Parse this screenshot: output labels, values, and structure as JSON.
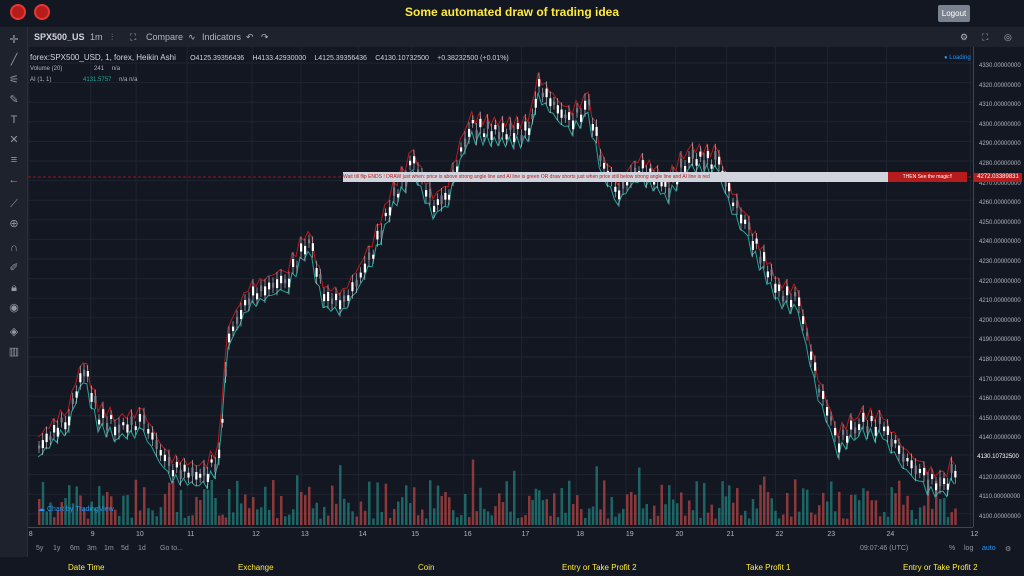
{
  "header": {
    "title": "Some automated draw of trading idea",
    "logout_label": "Logout"
  },
  "toolbar": {
    "symbol": "SPX500_US",
    "interval": "1m",
    "compare": "Compare",
    "indicators": "Indicators"
  },
  "legend": {
    "main_symbol": "forex:SPX500_USD, 1, forex, Heikin Ashi",
    "open": "O4125.39356436",
    "high": "H4133.42930000",
    "low": "L4125.39356436",
    "close": "C4130.10732500",
    "change": "+0.38232500 (+0.01%)",
    "volume_label": "Volume (20)",
    "volume_value": "241",
    "volume_na": "n/a",
    "ai_label": "AI (1, 1)",
    "ai_value": "4131.5757",
    "ai_na": "n/a  n/a",
    "loading": "Loading"
  },
  "banner": {
    "text": "Wait till flip ENDS  !  DRAW just when:  price is above strong angle line and AI line is green       OR        draw shorts just when price still below strong angle line and AI line is red",
    "right": "THEN See the magic!!"
  },
  "price_tags": {
    "alert": "4272.03389831",
    "last": "4130.10732500"
  },
  "price_axis": [
    "4330.00000000",
    "4320.00000000",
    "4310.00000000",
    "4300.00000000",
    "4290.00000000",
    "4280.00000000",
    "4270.00000000",
    "4260.00000000",
    "4250.00000000",
    "4240.00000000",
    "4230.00000000",
    "4220.00000000",
    "4210.00000000",
    "4200.00000000",
    "4190.00000000",
    "4180.00000000",
    "4170.00000000",
    "4160.00000000",
    "4150.00000000",
    "4140.00000000",
    "4120.00000000",
    "4110.00000000",
    "4100.00000000"
  ],
  "date_axis": [
    "8",
    "9",
    "10",
    "11",
    "12",
    "13",
    "14",
    "15",
    "16",
    "17",
    "18",
    "19",
    "20",
    "21",
    "22",
    "23",
    "24",
    "12"
  ],
  "bottom": {
    "ranges": [
      "5y",
      "1y",
      "6m",
      "3m",
      "1m",
      "5d",
      "1d"
    ],
    "goto": "Go to...",
    "time": "09:07:46 (UTC)",
    "pct": "%",
    "log": "log",
    "auto": "auto"
  },
  "footer": [
    "Date Time",
    "Exchange",
    "Coin",
    "Entry or Take Profit 2",
    "Take Profit 1",
    "Entry or Take Profit 2"
  ],
  "watermark": "Chart by TradingView",
  "colors": {
    "up": "#ffffff",
    "down": "#787b86",
    "ai_green": "#26a69a",
    "ai_red": "#b71c1c",
    "vol_up": "#26a69a",
    "vol_down": "#ef5350"
  }
}
